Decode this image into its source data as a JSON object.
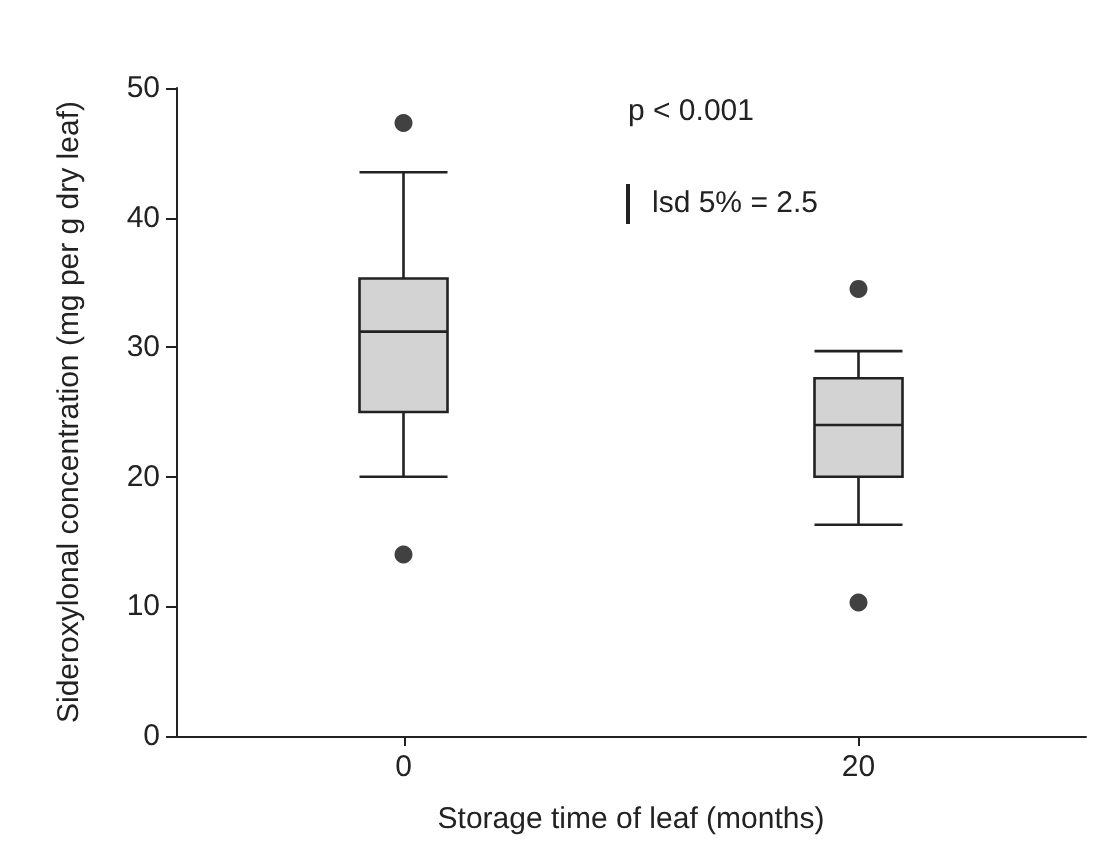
{
  "chart_data": {
    "type": "box",
    "xlabel": "Storage time of leaf (months)",
    "ylabel": "Sideroxylonal concentration (mg per g dry leaf)",
    "categories": [
      "0",
      "20"
    ],
    "series": [
      {
        "color": "#d3d3d3",
        "boxes": [
          {
            "low": 20,
            "q1": 25,
            "median": 31.2,
            "q3": 35.3,
            "high": 43.5,
            "outliers": [
              47.3,
              14
            ]
          },
          {
            "low": 16.3,
            "q1": 20,
            "median": 24,
            "q3": 27.6,
            "high": 29.7,
            "outliers": [
              34.5,
              10.3
            ]
          }
        ]
      }
    ],
    "ylim": [
      0,
      50
    ],
    "yticks": [
      0,
      10,
      20,
      30,
      40,
      50
    ],
    "grid": false,
    "annotations": [
      "p < 0.001",
      "lsd 5% = 2.5"
    ]
  }
}
